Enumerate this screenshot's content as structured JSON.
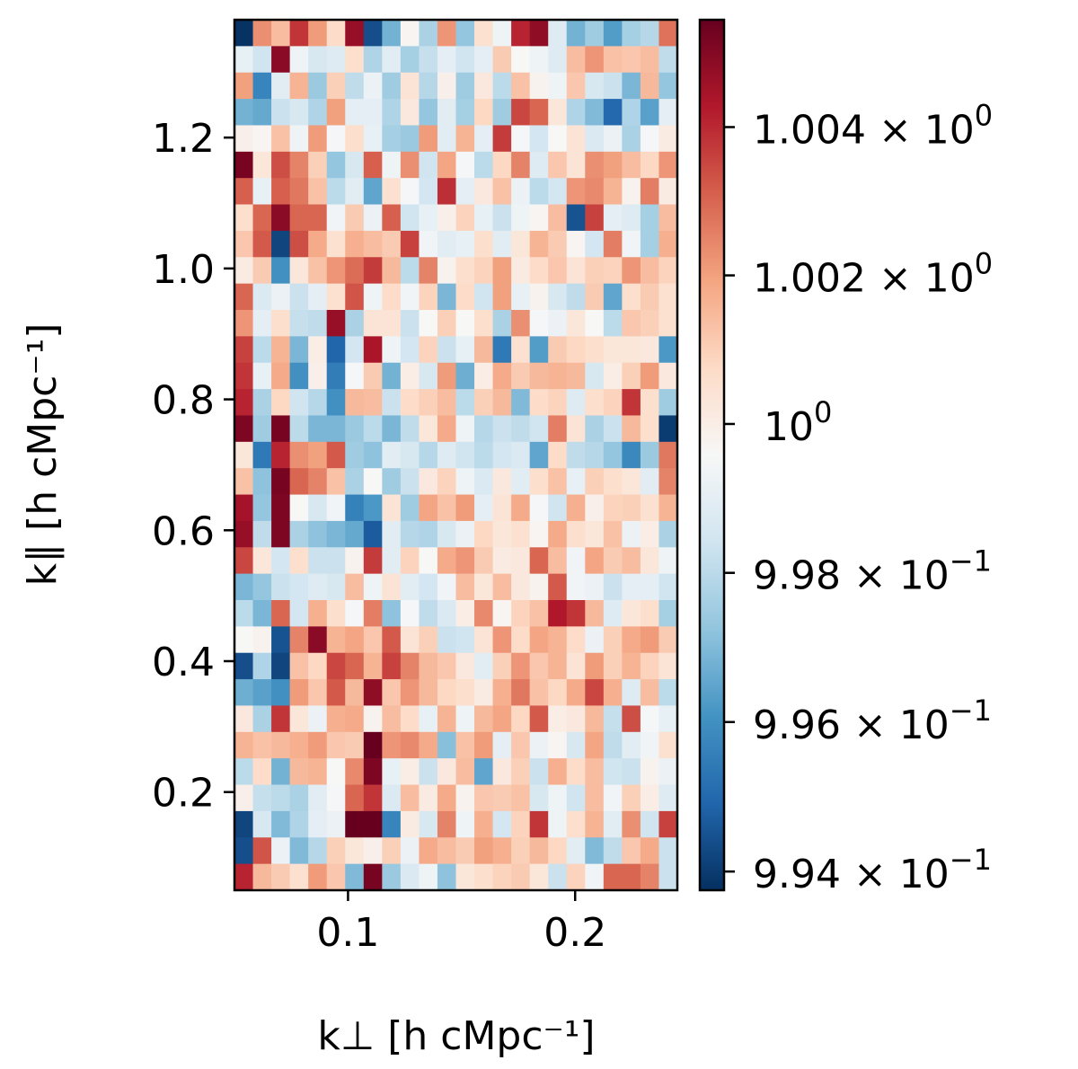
{
  "chart_data": {
    "type": "heatmap",
    "title": "",
    "xlabel": "k⊥ [h cMpc⁻¹]",
    "ylabel": "k∥ [h cMpc⁻¹]",
    "xlim": [
      0.05,
      0.245
    ],
    "ylim": [
      0.05,
      1.38
    ],
    "x_ticks": [
      {
        "value": 0.1,
        "label": "0.1"
      },
      {
        "value": 0.2,
        "label": "0.2"
      }
    ],
    "y_ticks": [
      {
        "value": 0.2,
        "label": "0.2"
      },
      {
        "value": 0.4,
        "label": "0.4"
      },
      {
        "value": 0.6,
        "label": "0.6"
      },
      {
        "value": 0.8,
        "label": "0.8"
      },
      {
        "value": 1.0,
        "label": "1.0"
      },
      {
        "value": 1.2,
        "label": "1.2"
      }
    ],
    "grid": false,
    "colormap": "RdBu_r",
    "colorbar": {
      "scale": "log",
      "range": [
        0.99375,
        1.00545
      ],
      "ticks": [
        {
          "value": 1.004,
          "mantissa": "1.004 × 10",
          "exp": "0"
        },
        {
          "value": 1.002,
          "mantissa": "1.002 × 10",
          "exp": "0"
        },
        {
          "value": 1.0,
          "mantissa": "10",
          "exp": "0"
        },
        {
          "value": 0.998,
          "mantissa": "9.98 × 10",
          "exp": "−1"
        },
        {
          "value": 0.996,
          "mantissa": "9.96 × 10",
          "exp": "−1"
        },
        {
          "value": 0.994,
          "mantissa": "9.94 × 10",
          "exp": "−1"
        }
      ]
    },
    "grid_shape": {
      "cols": 24,
      "rows": 33
    },
    "cell_values_top_to_bottom": [
      [
        0.9938,
        1.0023,
        1.0014,
        1.0038,
        1.0021,
        1.0007,
        1.0047,
        0.9944,
        0.9968,
        0.9997,
        0.9977,
        1.0022,
        0.9973,
        1.0005,
        0.9993,
        1.0041,
        1.0048,
        0.9988,
        0.9968,
        0.9975,
        0.9963,
        0.9976,
        0.9979,
        1.0028
      ],
      [
        0.9991,
        0.9984,
        1.0049,
        0.9993,
        0.9986,
        0.9988,
        1.0006,
        0.9978,
        0.9989,
        0.9976,
        0.9982,
        0.999,
        0.9984,
        0.999,
        1.0011,
        0.9996,
        0.9993,
        0.9988,
        1.0014,
        1.0022,
        1.0013,
        1.0012,
        1.0014,
        0.9981
      ],
      [
        1.002,
        0.9957,
        0.9989,
        1.0016,
        0.9974,
        1.001,
        0.9981,
        0.9992,
        0.9975,
        1.0004,
        0.9979,
        0.9999,
        0.9975,
        1.0002,
        0.998,
        1.0013,
        0.9998,
        0.9993,
        1.0012,
        0.9986,
        0.9983,
        0.9969,
        1.0015,
        0.9973
      ],
      [
        0.9968,
        0.9966,
        0.9983,
        0.9986,
        0.9978,
        1.002,
        0.999,
        0.999,
        0.9978,
        1.0002,
        0.9973,
        0.9989,
        0.9976,
        1.0008,
        0.9975,
        1.0035,
        1.003,
        1.0003,
        0.9978,
        0.997,
        0.995,
        0.9978,
        0.9964,
        0.999
      ],
      [
        0.9999,
        0.9997,
        1.0013,
        0.9993,
        1.0021,
        0.9995,
        1.0006,
        0.9991,
        0.9976,
        0.9974,
        1.0021,
        0.9989,
        1.0016,
        0.999,
        1.0037,
        0.9995,
        0.9985,
        0.9996,
        1.0004,
        0.9987,
        0.9992,
        0.9977,
        0.9995,
        1.0001
      ],
      [
        1.0052,
        1.0003,
        1.0034,
        1.0025,
        1.001,
        0.9973,
        0.9986,
        1.0031,
        0.9993,
        1.0023,
        0.9984,
        1.0019,
        0.9995,
        0.998,
        1.0008,
        1.0025,
        0.9988,
        1.0012,
        1.0004,
        1.0023,
        1.002,
        1.0014,
        1.0008,
        1.0022
      ],
      [
        1.0031,
        0.9991,
        1.0031,
        1.0027,
        1.0013,
        0.998,
        0.9989,
        0.9965,
        1.0005,
        0.9995,
        0.9985,
        1.0039,
        0.999,
        1.0002,
        1.0013,
        0.9992,
        0.998,
        0.9985,
        1.0022,
        1.0024,
        1.0016,
        0.9998,
        1.0026,
        1.0001
      ],
      [
        1.0006,
        1.003,
        1.0049,
        1.003,
        1.003,
        0.9994,
        1.0011,
        0.9992,
        1.0031,
        0.9984,
        0.9991,
        0.9999,
        1.0009,
        0.9991,
        0.9983,
        0.9993,
        0.9997,
        1.0014,
        0.9945,
        1.0036,
        0.999,
        0.9988,
        0.9976,
        1.0014
      ],
      [
        1.0012,
        1.0032,
        0.9942,
        1.0034,
        1.0018,
        1.0005,
        1.0017,
        1.0014,
        1.0011,
        1.0036,
        0.9994,
        0.9989,
        0.9991,
        1.0006,
        0.9989,
        1.0003,
        1.0016,
        1.0011,
        0.9997,
        0.9985,
        1.0026,
        0.9994,
        0.9976,
        1.0017
      ],
      [
        1.0001,
        1.0011,
        0.996,
        1.0003,
        1.0013,
        1.0022,
        1.0029,
        1.0037,
        1.0015,
        0.998,
        1.0025,
        0.9998,
        1.0006,
        1.0009,
        1.002,
        1.0001,
        1.0007,
        1.0012,
        1.0004,
        1.001,
        1.0009,
        1.0022,
        1.0014,
        1.0009
      ],
      [
        1.003,
        0.9987,
        0.9992,
        0.9983,
        0.999,
        1.0005,
        1.0033,
        0.9993,
        1.0007,
        0.9994,
        1.0009,
        0.9969,
        1.0007,
        0.9984,
        1.002,
        0.9991,
        0.9998,
        0.9986,
        0.9981,
        1.0011,
        0.9965,
        1.0006,
        1.0011,
        1.0005
      ],
      [
        1.0022,
        0.999,
        1.0006,
        0.9982,
        0.9981,
        1.0047,
        0.9977,
        1.0004,
        1.0004,
        0.9983,
        0.9996,
        1.001,
        0.9996,
        1.0006,
        0.9977,
        1.0023,
        0.9995,
        0.9992,
        1.0003,
        0.9996,
        0.998,
        1.0012,
        1.001,
        1.0005
      ],
      [
        1.0036,
        0.998,
        1.0016,
        0.9969,
        1.0,
        0.9949,
        0.9985,
        1.0044,
        0.9993,
        0.9985,
        1.0009,
        0.9983,
        0.9991,
        1.0015,
        0.9954,
        1.0005,
        0.9963,
        1.0011,
        1.0008,
        1.0006,
        1.0003,
        1.0003,
        1.0002,
        0.9962
      ],
      [
        1.0038,
        0.9991,
        1.0018,
        0.996,
        0.9999,
        0.9955,
        0.9995,
        1.0011,
        0.9968,
        1.0,
        0.9986,
        1.0021,
        0.9967,
        1.0,
        1.0018,
        1.0011,
        1.0015,
        1.0016,
        1.0015,
        0.9986,
        1.0,
        1.001,
        1.0021,
        1.0002
      ],
      [
        1.0041,
        0.9977,
        1.0008,
        0.9984,
        0.9979,
        0.996,
        1.0015,
        1.0014,
        0.9983,
        1.0007,
        1.001,
        1.0014,
        0.998,
        1.001,
        1.0015,
        0.997,
        1.0007,
        1.0009,
        0.9988,
        1.0006,
        1.0009,
        1.0038,
        1.0006,
        0.9975
      ],
      [
        1.0051,
        0.9975,
        1.0052,
        0.998,
        0.9969,
        0.9969,
        0.9974,
        0.998,
        0.9969,
        0.9981,
        1.0003,
        1.0018,
        0.9993,
        0.9979,
        0.9983,
        0.9981,
        0.9984,
        1.0026,
        1.0004,
        0.9977,
        0.9983,
        1.0015,
        1.0006,
        0.994
      ],
      [
        1.0003,
        0.9954,
        1.0041,
        1.0023,
        1.002,
        1.0032,
        0.9975,
        0.9972,
        0.9989,
        0.9986,
        0.9979,
        0.9988,
        0.9984,
        0.998,
        0.9985,
        0.9987,
        0.9965,
        1.0007,
        0.9981,
        0.9979,
        0.9973,
        0.9958,
        0.9974,
        1.0027
      ],
      [
        1.0013,
        0.9972,
        1.0052,
        1.003,
        1.0025,
        1.0013,
        0.9977,
        0.9996,
        0.9975,
        0.9983,
        1.0002,
        1.0009,
        0.9993,
        0.9987,
        1.0002,
        0.9989,
        1.0006,
        1.0013,
        0.9991,
        1.001,
        1.0006,
        1.0003,
        0.9989,
        1.0025
      ],
      [
        1.0045,
        0.9973,
        1.0051,
        0.9996,
        0.9986,
        0.9994,
        0.9956,
        0.9962,
        1.0004,
        0.9975,
        1.0019,
        1.0013,
        1.0021,
        0.999,
        1.0004,
        1.0018,
        0.9995,
        0.9984,
        1.0017,
        0.9999,
        1.0009,
        1.001,
        1.0005,
        1.0016
      ],
      [
        1.0047,
        0.9981,
        1.0051,
        0.9977,
        0.9972,
        0.9969,
        0.9966,
        0.9947,
        0.9989,
        0.9979,
        0.9978,
        0.9986,
        0.9992,
        1.0008,
        1.0003,
        1.0005,
        0.9997,
        1.0018,
        1.0006,
        1.0003,
        1.0013,
        0.9992,
        1.0,
        0.9977
      ],
      [
        1.0035,
        1.0003,
        0.9985,
        1.0006,
        0.9983,
        0.9983,
        0.9998,
        1.0037,
        0.9989,
        1.0009,
        0.9996,
        1.0018,
        1.0022,
        1.0011,
        1.0001,
        1.0002,
        1.003,
        1.0014,
        0.9994,
        1.0019,
        1.0011,
        1.0014,
        1.0003,
        0.9993
      ],
      [
        0.9969,
        0.9973,
        0.9983,
        0.9985,
        0.9988,
        0.9986,
        1.0014,
        0.9993,
        1.0004,
        0.9989,
        0.9985,
        0.9994,
        1.0014,
        1.0003,
        1.0014,
        1.0002,
        0.9998,
        1.0032,
        0.9994,
        0.9992,
        0.9983,
        0.999,
        0.999,
        0.9984
      ],
      [
        0.998,
        0.9969,
        1.003,
        0.9985,
        1.0017,
        1.0006,
        0.9995,
        1.0026,
        0.9972,
        0.9995,
        0.9981,
        0.9987,
        1.0,
        1.0024,
        0.9997,
        1.0009,
        1.0013,
        1.0043,
        1.0038,
        1.0015,
        0.9988,
        1.0003,
        1.0006,
        0.9976
      ],
      [
        0.9996,
        0.9998,
        0.9945,
        1.0025,
        1.0049,
        1.0016,
        1.0019,
        1.0012,
        1.0032,
        1.0004,
        1.001,
        0.9983,
        0.9984,
        1.0004,
        1.0022,
        1.0007,
        1.0019,
        1.0016,
        1.0007,
        0.9992,
        1.001,
        1.0018,
        1.0021,
        1.0011
      ],
      [
        0.9944,
        0.9978,
        0.9942,
        1.0013,
        1.0008,
        1.0035,
        1.003,
        1.0016,
        1.0036,
        1.0025,
        1.0015,
        1.0012,
        1.0002,
        0.9989,
        1.001,
        1.0022,
        1.0012,
        1.0016,
        1.0004,
        1.0021,
        1.001,
        1.0016,
        1.0009,
        1.0004
      ],
      [
        0.9967,
        0.9964,
        0.996,
        1.0021,
        1.0012,
        1.0032,
        1.0015,
        1.0048,
        1.0012,
        1.0022,
        1.0015,
        1.0008,
        1.0006,
        1.0001,
        1.0017,
        1.0027,
        1.0013,
        1.0008,
        1.0018,
        1.0035,
        1.0017,
        0.9988,
        1.0014,
        0.998
      ],
      [
        1.0002,
        0.9977,
        1.0038,
        1.0003,
        0.9992,
        1.0017,
        1.0018,
        0.9998,
        1.0014,
        1.0007,
        0.9991,
        1.0016,
        0.9993,
        1.0015,
        1.0019,
        1.0008,
        1.0032,
        1.0,
        1.0002,
        1.0015,
        0.9982,
        1.0034,
        0.9995,
        0.9991
      ],
      [
        1.0016,
        1.0013,
        1.0015,
        1.0017,
        1.0021,
        1.0012,
        1.0011,
        1.0057,
        1.0022,
        1.0024,
        1.0018,
        0.9971,
        1.0013,
        1.0021,
        0.999,
        1.0012,
        0.9992,
        0.9997,
        0.9986,
        1.0019,
        0.9981,
        0.9989,
        0.9994,
        1.0005
      ],
      [
        0.998,
        1.0007,
        0.9968,
        1.0015,
        1.0016,
        0.9996,
        1.0024,
        1.0051,
        0.9991,
        1.0,
        0.9983,
        1.0002,
        1.0014,
        0.9965,
        1.0002,
        1.001,
        0.9983,
        1.0017,
        1.0007,
        1.0014,
        0.9984,
        0.9983,
        0.9998,
        0.9992
      ],
      [
        0.9999,
        0.9982,
        0.998,
        0.9977,
        0.9989,
        0.9995,
        1.003,
        1.0038,
        0.9987,
        1.0014,
        1.0001,
        1.0018,
        0.9998,
        1.0012,
        1.0011,
        1.0013,
        0.9986,
        0.9993,
        0.9984,
        1.0014,
        0.9994,
        1.001,
        1.0,
        0.9988
      ],
      [
        0.9942,
        0.9986,
        0.997,
        0.9978,
        0.999,
        0.9992,
        1.006,
        1.0058,
        0.9957,
        1.0001,
        0.9986,
        1.0025,
        0.9993,
        1.0017,
        0.9985,
        1.0009,
        1.0038,
        0.9993,
        1.0006,
        1.0016,
        0.9989,
        1.0023,
        0.9984,
        1.0036
      ],
      [
        0.9944,
        1.0033,
        0.9992,
        0.997,
        0.9979,
        1.001,
        1.0003,
        0.9999,
        1.001,
        0.9992,
        1.0018,
        1.0014,
        1.0011,
        1.002,
        1.0017,
        1.001,
        1.0015,
        1.0008,
        0.9989,
        0.997,
        0.9981,
        1.0012,
        1.0018,
        0.9983
      ],
      [
        1.0041,
        1.0015,
        1.0011,
        1.0005,
        1.0021,
        1.0012,
        0.997,
        1.0052,
        0.9974,
        0.9987,
        0.9993,
        0.9972,
        1.0003,
        1.0006,
        1.0009,
        1.0011,
        1.0003,
        0.9983,
        1.0009,
        0.9994,
        1.003,
        1.003,
        1.0025,
        0.9983
      ]
    ]
  }
}
